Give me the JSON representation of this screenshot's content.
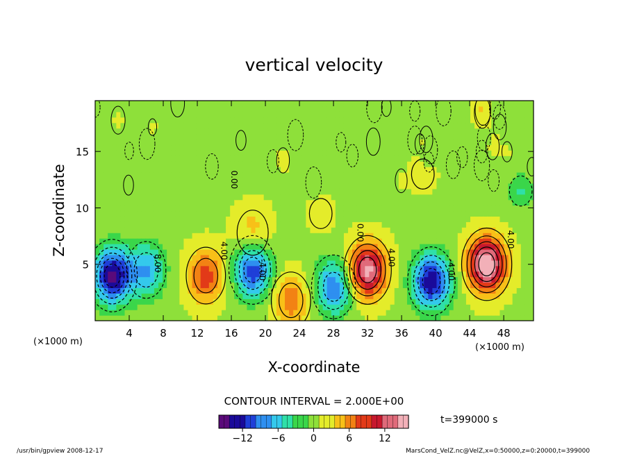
{
  "chart_data": {
    "type": "heatmap",
    "title": "vertical velocity",
    "xlabel": "X-coordinate",
    "ylabel": "Z-coordinate",
    "x_unit": "(×1000 m)",
    "xlim": [
      0,
      51.5
    ],
    "ylim": [
      0,
      19.5
    ],
    "x_ticks": [
      4,
      8,
      12,
      16,
      20,
      24,
      28,
      32,
      36,
      40,
      44,
      48
    ],
    "y_ticks": [
      5,
      10,
      15
    ],
    "contour_interval_label": "CONTOUR INTERVAL = 2.000E+00",
    "contour_labels": [
      "4.00",
      "0.00",
      "-4.00",
      "8.00"
    ],
    "colorbar": {
      "min": -16,
      "max": 16,
      "ticks": [
        -12,
        -6,
        0,
        6,
        12
      ],
      "colors": [
        "#5a0a7a",
        "#1a0a9a",
        "#1f3fd8",
        "#2e8ff0",
        "#34c9ec",
        "#2fe0a8",
        "#3ad64a",
        "#8ee03a",
        "#e4ec2a",
        "#f8c018",
        "#f28214",
        "#e23a18",
        "#c8182e",
        "#e06a7a",
        "#f2b0b8"
      ]
    },
    "features": [
      {
        "type": "updraft",
        "x": 13.0,
        "z": 4.0,
        "peak": 8
      },
      {
        "type": "updraft",
        "x": 32.0,
        "z": 4.5,
        "peak": 14
      },
      {
        "type": "updraft",
        "x": 46.0,
        "z": 5.0,
        "peak": 16
      },
      {
        "type": "updraft",
        "x": 23.0,
        "z": 1.8,
        "peak": 6
      },
      {
        "type": "updraft",
        "x": 18.5,
        "z": 7.8,
        "peak": 4
      },
      {
        "type": "downdraft",
        "x": 2.0,
        "z": 4.0,
        "peak": -15
      },
      {
        "type": "downdraft",
        "x": 6.0,
        "z": 4.5,
        "peak": -8
      },
      {
        "type": "downdraft",
        "x": 18.5,
        "z": 4.5,
        "peak": -12
      },
      {
        "type": "downdraft",
        "x": 28.0,
        "z": 3.0,
        "peak": -10
      },
      {
        "type": "downdraft",
        "x": 39.5,
        "z": 3.5,
        "peak": -14
      },
      {
        "type": "weak-updraft",
        "x": 38.5,
        "z": 13.0,
        "peak": 2
      },
      {
        "type": "weak-updraft",
        "x": 26.5,
        "z": 9.5,
        "peak": 2
      },
      {
        "type": "weak-downdraft",
        "x": 50.0,
        "z": 11.5,
        "peak": -4
      }
    ]
  },
  "time_label": "t=399000 s",
  "footer_left": "/usr/bin/gpview   2008-12-17",
  "footer_right": "MarsCond_VelZ.nc@VelZ,x=0:50000,z=0:20000,t=399000"
}
